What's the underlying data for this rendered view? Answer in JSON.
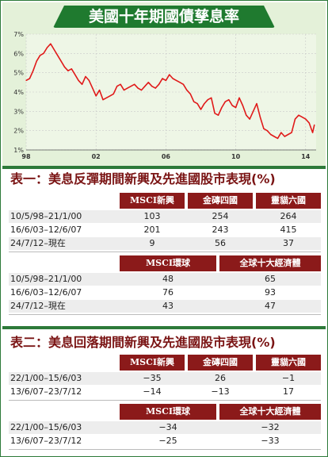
{
  "header": {
    "title": "美國十年期國債孳息率"
  },
  "chart_data": {
    "type": "line",
    "x": [
      1998.0,
      1998.2,
      1998.4,
      1998.6,
      1998.8,
      1999.0,
      1999.2,
      1999.4,
      1999.6,
      1999.8,
      2000.0,
      2000.2,
      2000.4,
      2000.6,
      2000.8,
      2001.0,
      2001.2,
      2001.4,
      2001.6,
      2001.8,
      2002.0,
      2002.2,
      2002.4,
      2002.6,
      2002.8,
      2003.0,
      2003.2,
      2003.4,
      2003.6,
      2003.8,
      2004.0,
      2004.2,
      2004.4,
      2004.6,
      2004.8,
      2005.0,
      2005.2,
      2005.4,
      2005.6,
      2005.8,
      2006.0,
      2006.2,
      2006.4,
      2006.6,
      2006.8,
      2007.0,
      2007.2,
      2007.4,
      2007.6,
      2007.8,
      2008.0,
      2008.2,
      2008.4,
      2008.6,
      2008.8,
      2009.0,
      2009.2,
      2009.4,
      2009.6,
      2009.8,
      2010.0,
      2010.2,
      2010.4,
      2010.6,
      2010.8,
      2011.0,
      2011.2,
      2011.4,
      2011.6,
      2011.8,
      2012.0,
      2012.2,
      2012.4,
      2012.6,
      2012.8,
      2013.0,
      2013.2,
      2013.4,
      2013.6,
      2013.8,
      2014.0,
      2014.2,
      2014.4,
      2014.5
    ],
    "values": [
      4.6,
      4.7,
      5.1,
      5.6,
      5.9,
      6.0,
      6.3,
      6.5,
      6.2,
      5.9,
      5.6,
      5.3,
      5.1,
      5.2,
      4.9,
      4.6,
      4.4,
      4.8,
      4.6,
      4.2,
      3.8,
      4.1,
      3.6,
      3.7,
      3.8,
      3.9,
      4.3,
      4.4,
      4.1,
      4.2,
      4.3,
      4.4,
      4.2,
      4.1,
      4.3,
      4.5,
      4.3,
      4.2,
      4.4,
      4.7,
      4.6,
      4.9,
      4.7,
      4.6,
      4.5,
      4.4,
      4.1,
      3.9,
      3.5,
      3.4,
      3.1,
      3.4,
      3.6,
      3.7,
      2.9,
      2.8,
      3.2,
      3.5,
      3.6,
      3.3,
      3.2,
      3.7,
      3.3,
      2.8,
      2.6,
      3.0,
      3.4,
      2.7,
      2.1,
      2.0,
      1.8,
      1.7,
      1.6,
      1.9,
      1.7,
      1.8,
      1.9,
      2.6,
      2.8,
      2.7,
      2.6,
      2.4,
      1.9,
      2.3
    ],
    "xticks": [
      "98",
      "02",
      "06",
      "10",
      "14"
    ],
    "xtick_values": [
      1998,
      2002,
      2006,
      2010,
      2014
    ],
    "yticks": [
      "1%",
      "2%",
      "3%",
      "4%",
      "5%",
      "6%",
      "7%"
    ],
    "ytick_values": [
      1,
      2,
      3,
      4,
      5,
      6,
      7
    ],
    "ylim": [
      1,
      7
    ],
    "xlim": [
      1998,
      2014.6
    ],
    "title": "美國十年期國債孳息率",
    "line_color": "#e01a1a",
    "grid": true
  },
  "table1": {
    "prefix": "表一：",
    "title": "美息反彈期間新興及先進國股市表現(%)",
    "headers1": [
      "MSCI新興",
      "金磚四國",
      "靈貓六國"
    ],
    "rows1": [
      {
        "period": "10/5/98–21/1/00",
        "values": [
          "103",
          "254",
          "264"
        ]
      },
      {
        "period": "16/6/03–12/6/07",
        "values": [
          "201",
          "243",
          "415"
        ]
      },
      {
        "period": "24/7/12–現在",
        "values": [
          "9",
          "56",
          "37"
        ]
      }
    ],
    "headers2": [
      "MSCI環球",
      "全球十大經濟體"
    ],
    "rows2": [
      {
        "period": "10/5/98–21/1/00",
        "values": [
          "48",
          "65"
        ]
      },
      {
        "period": "16/6/03–12/6/07",
        "values": [
          "76",
          "93"
        ]
      },
      {
        "period": "24/7/12–現在",
        "values": [
          "43",
          "47"
        ]
      }
    ]
  },
  "table2": {
    "prefix": "表二：",
    "title": "美息回落期間新興及先進國股市表現(%)",
    "headers1": [
      "MSCI新興",
      "金磚四國",
      "靈貓六國"
    ],
    "rows1": [
      {
        "period": "22/1/00–15/6/03",
        "values": [
          "−35",
          "26",
          "−1"
        ]
      },
      {
        "period": "13/6/07–23/7/12",
        "values": [
          "−14",
          "−13",
          "17"
        ]
      }
    ],
    "headers2": [
      "MSCI環球",
      "全球十大經濟體"
    ],
    "rows2": [
      {
        "period": "22/1/00–15/6/03",
        "values": [
          "−34",
          "−32"
        ]
      },
      {
        "period": "13/6/07–23/7/12",
        "values": [
          "−25",
          "−33"
        ]
      }
    ]
  }
}
